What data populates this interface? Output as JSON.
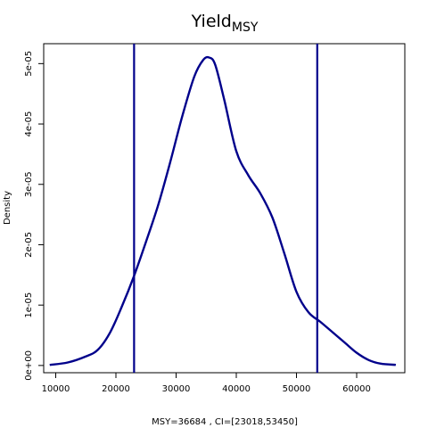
{
  "chart_data": {
    "type": "line",
    "title": "Yield",
    "title_subscript": "MSY",
    "xlabel": "MSY=36684 , CI=[23018,53450]",
    "ylabel": "Density",
    "xlim": [
      8000,
      68000
    ],
    "ylim": [
      -1.2e-06,
      5.33e-05
    ],
    "x_ticks": [
      10000,
      20000,
      30000,
      40000,
      50000,
      60000
    ],
    "x_tick_labels": [
      "10000",
      "20000",
      "30000",
      "40000",
      "50000",
      "60000"
    ],
    "y_ticks": [
      0,
      1e-05,
      2e-05,
      3e-05,
      4e-05,
      5e-05
    ],
    "y_tick_labels": [
      "0e+00",
      "1e-05",
      "2e-05",
      "3e-05",
      "4e-05",
      "5e-05"
    ],
    "grid": false,
    "line_color": "#00008B",
    "ci_lines": [
      23018,
      53450
    ],
    "series": [
      {
        "x": [
          9000,
          12000,
          15000,
          17000,
          19000,
          21000,
          23000,
          25000,
          27000,
          29000,
          31000,
          33000,
          34500,
          35500,
          36500,
          38000,
          40000,
          42000,
          44000,
          46000,
          48000,
          50000,
          52000,
          54000,
          56000,
          58000,
          60000,
          62000,
          64000,
          66500
        ],
        "y": [
          1e-07,
          5e-07,
          1.5e-06,
          2.6e-06,
          5.4e-06,
          9.8e-06,
          1.48e-05,
          2.05e-05,
          2.65e-05,
          3.36e-05,
          4.12e-05,
          4.78e-05,
          5.06e-05,
          5.1e-05,
          4.98e-05,
          4.4e-05,
          3.55e-05,
          3.15e-05,
          2.85e-05,
          2.45e-05,
          1.85e-05,
          1.22e-05,
          8.8e-06,
          7.2e-06,
          5.5e-06,
          3.8e-06,
          2.1e-06,
          9e-07,
          3e-07,
          1e-07
        ]
      }
    ]
  }
}
